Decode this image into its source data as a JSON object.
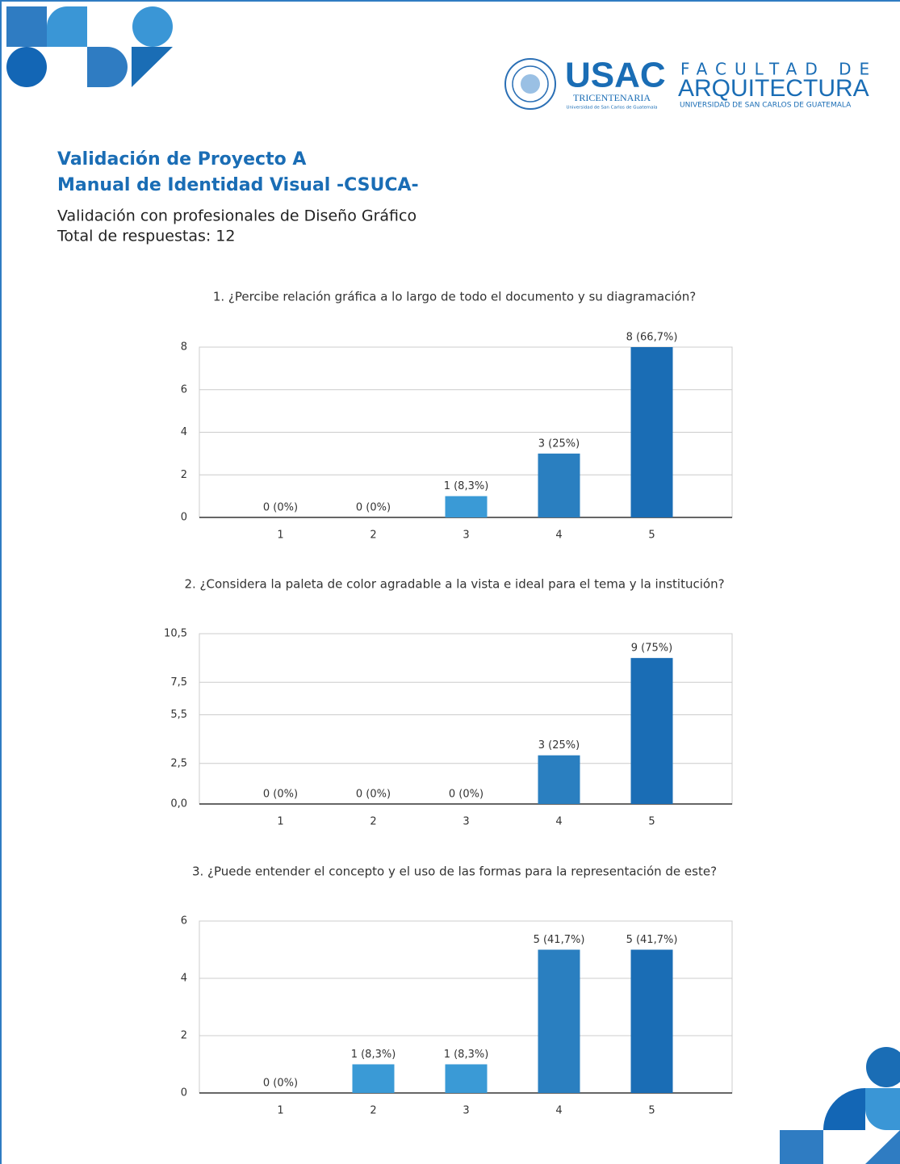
{
  "header": {
    "title_line1": "Validación de Proyecto A",
    "title_line2": "Manual de Identidad Visual -CSUCA-",
    "subtitle_line1": "Validación con profesionales de Diseño Gráfico",
    "subtitle_line2": "Total de respuestas: 12"
  },
  "logo": {
    "usac": "USAC",
    "tricentenaria": "TRICENTENARIA",
    "usac_sub": "Universidad de San Carlos de Guatemala",
    "facultad": "FACULTAD DE",
    "arquitectura": "ARQUITECTURA",
    "arq_sub": "UNIVERSIDAD DE SAN CARLOS DE GUATEMALA"
  },
  "chart_data": [
    {
      "type": "bar",
      "title": "1. ¿Percibe relación gráfica a lo largo de todo el documento y su diagramación?",
      "categories": [
        "1",
        "2",
        "3",
        "4",
        "5"
      ],
      "values": [
        0,
        0,
        1,
        3,
        8
      ],
      "value_labels": [
        "0 (0%)",
        "0 (0%)",
        "1 (8,3%)",
        "3 (25%)",
        "8 (66,7%)"
      ],
      "colors": [
        "#3a9ad6",
        "#3a9ad6",
        "#3a9ad6",
        "#2a7fc0",
        "#1a6db5"
      ],
      "ylim": [
        0,
        8
      ],
      "yticks": [
        0,
        2,
        4,
        6,
        8
      ],
      "grid": true
    },
    {
      "type": "bar",
      "title": "2. ¿Considera la paleta de color agradable a la vista e ideal para el tema y la institución?",
      "categories": [
        "1",
        "2",
        "3",
        "4",
        "5"
      ],
      "values": [
        0,
        0,
        0,
        3,
        9
      ],
      "value_labels": [
        "0 (0%)",
        "0 (0%)",
        "0 (0%)",
        "3 (25%)",
        "9 (75%)"
      ],
      "colors": [
        "#3a9ad6",
        "#3a9ad6",
        "#3a9ad6",
        "#2a7fc0",
        "#1a6db5"
      ],
      "ylim": [
        0,
        10.5
      ],
      "yticks": [
        {
          "value": 0,
          "label": "0,0"
        },
        {
          "value": 2.5,
          "label": "2,5"
        },
        {
          "value": 5.5,
          "label": "5,5"
        },
        {
          "value": 7.5,
          "label": "7,5"
        },
        {
          "value": 10.5,
          "label": "10,5"
        }
      ],
      "grid": true
    },
    {
      "type": "bar",
      "title": "3. ¿Puede entender el concepto y el uso de las formas para la representación de este?",
      "categories": [
        "1",
        "2",
        "3",
        "4",
        "5"
      ],
      "values": [
        0,
        1,
        1,
        5,
        5
      ],
      "value_labels": [
        "0 (0%)",
        "1 (8,3%)",
        "1 (8,3%)",
        "5 (41,7%)",
        "5 (41,7%)"
      ],
      "colors": [
        "#3a9ad6",
        "#3a9ad6",
        "#3a9ad6",
        "#2a7fc0",
        "#1a6db5"
      ],
      "ylim": [
        0,
        6
      ],
      "yticks": [
        0,
        2,
        4,
        6
      ],
      "grid": true
    }
  ]
}
